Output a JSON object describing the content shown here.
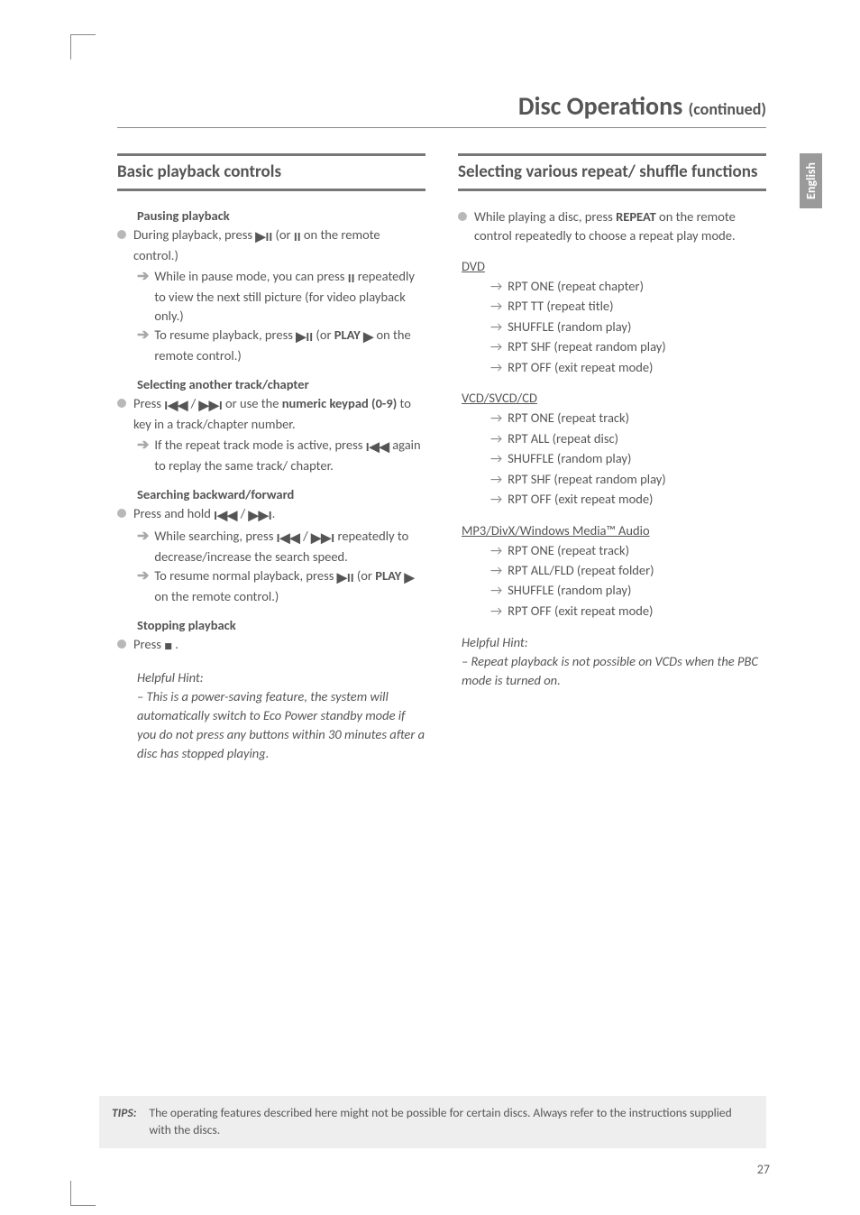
{
  "title": {
    "main": "Disc Operations ",
    "sub": "(continued)"
  },
  "sideTab": "English",
  "left": {
    "sectionHead": "Basic playback controls",
    "pausing": {
      "head": "Pausing playback",
      "p1a": "During playback, press ",
      "p1b": " (or ",
      "p1c": " on the remote control.)",
      "a1a": "While in pause mode, you can press ",
      "a1b": " repeatedly to view the next still picture (for video playback only.)",
      "a2a": "To resume playback, press ",
      "a2b": " (or ",
      "a2c": " on the remote control.)",
      "playBold": "PLAY "
    },
    "selecting": {
      "head": "Selecting another track/chapter",
      "p1a": "Press ",
      "p1b": " / ",
      "p1c": " or use the ",
      "p1d": "numeric keypad (0-9)",
      "p1e": " to key in a track/chapter number.",
      "a1a": "If the repeat track mode is active, press ",
      "a1b": " again to replay the same track/ chapter."
    },
    "searching": {
      "head": "Searching backward/forward",
      "p1a": "Press and hold ",
      "p1b": " / ",
      "p1c": ".",
      "a1a": "While searching, press ",
      "a1b": " / ",
      "a1c": " repeatedly to decrease/increase the search speed.",
      "a2a": "To resume normal playback, press ",
      "a2b": " (or ",
      "a2c": " on the remote control.)",
      "playBold": "PLAY "
    },
    "stopping": {
      "head": "Stopping playback",
      "p1a": "Press ",
      "p1b": " ."
    },
    "hint": {
      "label": "Helpful Hint:",
      "text": "– This is a power-saving feature, the system will automatically switch to Eco Power standby mode if you do not press any buttons within 30 minutes after a disc has stopped playing."
    }
  },
  "right": {
    "sectionHead": "Selecting various repeat/ shuffle functions",
    "intro": {
      "a": "While playing a disc, press ",
      "b": "REPEAT",
      "c": " on the remote control repeatedly to choose a repeat play mode."
    },
    "groups": [
      {
        "head": "DVD",
        "items": [
          "RPT ONE (repeat chapter)",
          "RPT TT (repeat title)",
          "SHUFFLE (random play)",
          "RPT SHF (repeat random play)",
          "RPT OFF (exit repeat mode)"
        ]
      },
      {
        "head": "VCD/SVCD/CD",
        "items": [
          "RPT ONE (repeat track)",
          "RPT ALL (repeat disc)",
          "SHUFFLE (random play)",
          "RPT SHF (repeat random play)",
          "RPT OFF (exit repeat mode)"
        ]
      },
      {
        "head": "MP3/DivX/Windows Media™ Audio",
        "items": [
          "RPT ONE (repeat track)",
          "RPT ALL/FLD (repeat folder)",
          "SHUFFLE (random play)",
          "RPT OFF (exit repeat mode)"
        ]
      }
    ],
    "hint": {
      "label": "Helpful Hint:",
      "text": "– Repeat playback is not possible on VCDs when the PBC mode is turned on."
    }
  },
  "tips": {
    "label": "TIPS:",
    "text": "The operating features described here might not be possible for certain discs. Always refer to the instructions supplied with the discs."
  },
  "pageNum": "27",
  "icons": {
    "playpause": "▶II",
    "pause": "II",
    "play": "▶",
    "prev": "I◀◀",
    "next": "▶▶I",
    "stop": "■",
    "arrow": "➔",
    "rarrow": "→"
  }
}
